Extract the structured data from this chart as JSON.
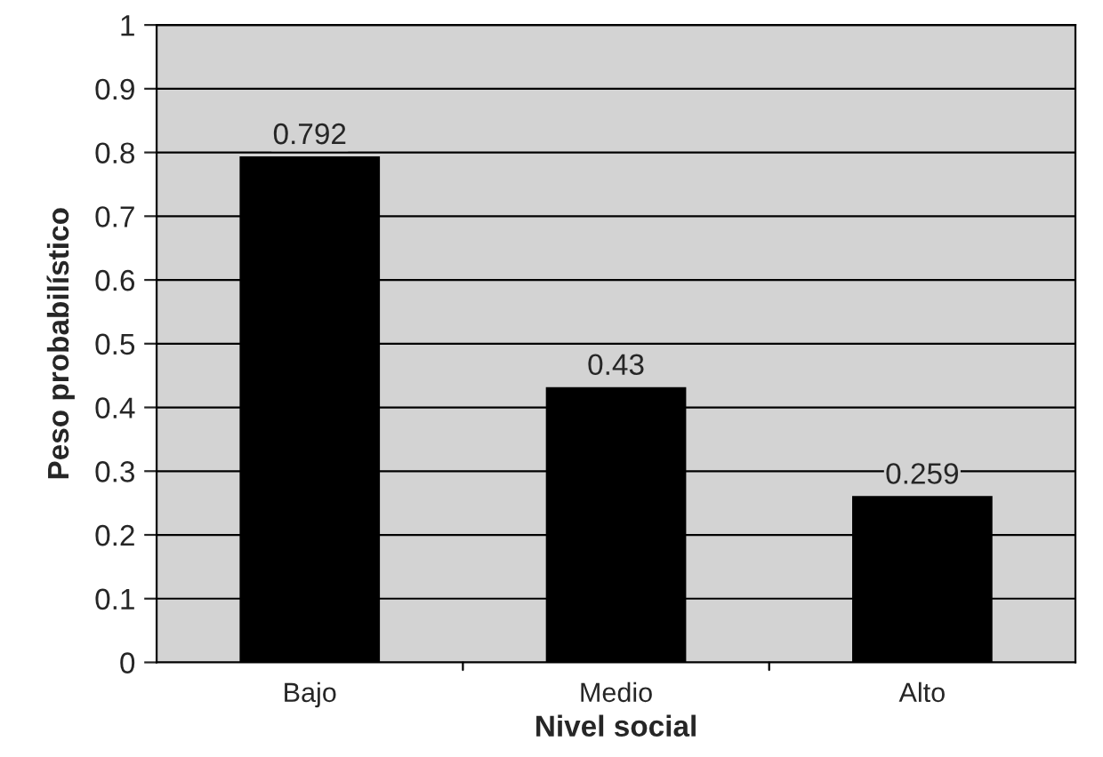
{
  "chart_data": {
    "type": "bar",
    "xlabel": "Nivel social",
    "ylabel": "Peso probabilístico",
    "categories": [
      "Bajo",
      "Medio",
      "Alto"
    ],
    "values": [
      0.792,
      0.43,
      0.259
    ],
    "color": "#000000",
    "ylim": [
      0,
      1
    ],
    "yticks": [
      0,
      0.1,
      0.2,
      0.3,
      0.4,
      0.5,
      0.6,
      0.7,
      0.8,
      0.9,
      1
    ],
    "data_labels": true,
    "grid": "y",
    "legend": false
  }
}
